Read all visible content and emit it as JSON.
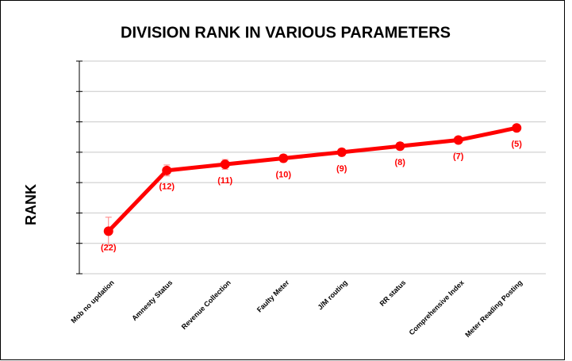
{
  "chart_data": {
    "type": "line",
    "title": "DIVISION RANK IN VARIOUS PARAMETERS",
    "y_label": "RANK",
    "categories": [
      "Mob no updation",
      "Amnesty Status",
      "Revenue Collection",
      "Faulty Meter",
      "J/M routing",
      "RR status",
      "Comprehensive Index",
      "Meter Reading Posting"
    ],
    "series": [
      {
        "name": "RANK",
        "color": "#ff0000",
        "values": [
          22,
          12,
          11,
          10,
          9,
          8,
          7,
          5
        ],
        "value_labels": [
          "(22)",
          "(12)",
          "(11)",
          "(10)",
          "(9)",
          "(8)",
          "(7)",
          "(5)"
        ],
        "errors": [
          2.3,
          0.9,
          0.8,
          0.6,
          0.6,
          0.6,
          0.5,
          0.4
        ]
      }
    ],
    "ylim": [
      29,
      -6
    ],
    "yticks": [
      29,
      24,
      19,
      14,
      9,
      4,
      -1,
      -6
    ],
    "grid": true
  }
}
